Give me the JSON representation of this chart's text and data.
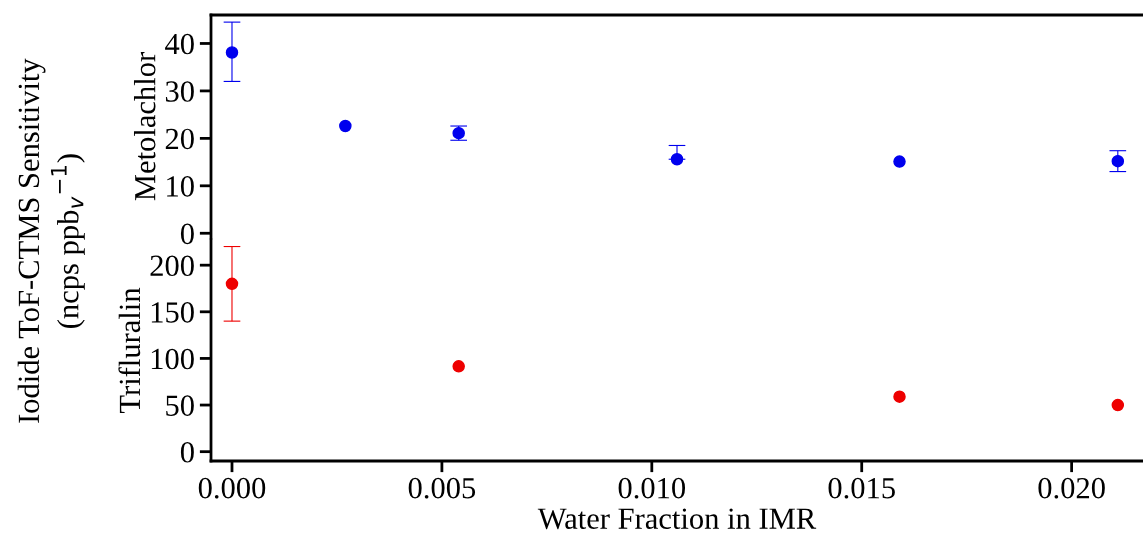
{
  "chart_data": [
    {
      "type": "scatter",
      "ylabel": "Metolachlor",
      "annotations": [
        "Iodide ToF-CTMS Sensitivity\n(ncps ppb$_{v}$$^{−1}$)"
      ],
      "x": [
        0,
        0.0027,
        0.0054,
        0.0106,
        0.0159,
        0.0211
      ],
      "series": [
        {
          "color": "#0000ee",
          "values": [
            38.1,
            22.6,
            21.1,
            15.6,
            15.1,
            15.2
          ],
          "errors": [
            [
              32,
              44.5
            ],
            null,
            1.5,
            [
              15.6,
              18.5
            ],
            null,
            2.2
          ]
        }
      ],
      "xlim": [
        -0.0005,
        0.0217
      ],
      "ylim": [
        -1,
        46
      ],
      "yticks": [
        0,
        10,
        20,
        30,
        40
      ],
      "marker": "circle",
      "tick_labels": "y"
    },
    {
      "type": "scatter",
      "ylabel": "Trifluralin",
      "xlabel": "Water Fraction in IMR",
      "x": [
        0,
        0.0054,
        0.0159,
        0.0211
      ],
      "series": [
        {
          "color": "#ee0000",
          "values": [
            180,
            91.5,
            59,
            50
          ],
          "errors": [
            [
              140,
              220
            ],
            null,
            null,
            null
          ]
        }
      ],
      "xlim": [
        -0.0005,
        0.0217
      ],
      "xticks": [
        {
          "value": 0,
          "label": "0.000"
        },
        {
          "value": 0.005,
          "label": "0.005"
        },
        {
          "value": 0.01,
          "label": "0.010"
        },
        {
          "value": 0.015,
          "label": "0.015"
        },
        {
          "value": 0.02,
          "label": "0.020"
        }
      ],
      "ylim": [
        -10,
        227
      ],
      "yticks": [
        0,
        50,
        100,
        150,
        200
      ],
      "marker": "circle"
    }
  ]
}
